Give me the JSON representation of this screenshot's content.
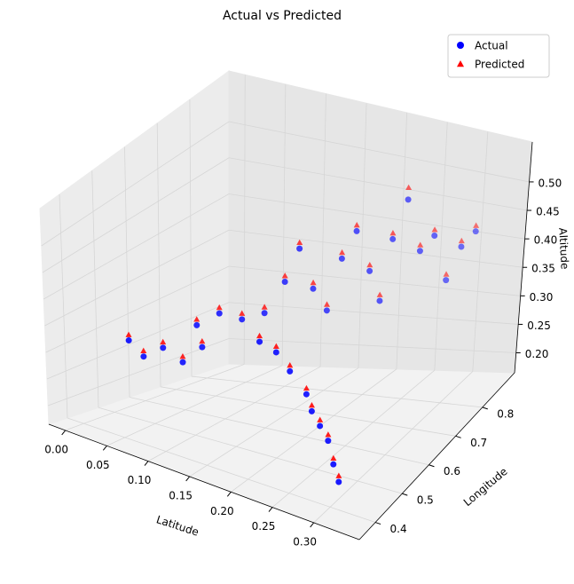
{
  "chart_data": {
    "type": "scatter3d",
    "title": "Actual vs Predicted",
    "xlabel": "Latitude",
    "ylabel": "Longitude",
    "zlabel": "Altitude",
    "xlim": [
      -0.02,
      0.355
    ],
    "ylim": [
      0.34,
      0.92
    ],
    "zlim": [
      0.165,
      0.57
    ],
    "xticks": [
      {
        "value": 0,
        "label": "0.00"
      },
      0.05,
      {
        "value": 0.1,
        "label": "0.10"
      },
      0.15,
      {
        "value": 0.2,
        "label": "0.20"
      },
      0.25,
      {
        "value": 0.3,
        "label": "0.30"
      }
    ],
    "yticks": [
      0.4,
      0.5,
      0.6,
      0.7,
      0.8
    ],
    "zticks": [
      {
        "value": 0.2,
        "label": "0.20"
      },
      0.25,
      {
        "value": 0.3,
        "label": "0.30"
      },
      0.35,
      {
        "value": 0.4,
        "label": "0.40"
      },
      0.45,
      {
        "value": 0.5,
        "label": "0.50"
      }
    ],
    "legend": "upper right",
    "grid": true,
    "series": [
      {
        "name": "Actual",
        "color": "#0000ff",
        "marker": "circle",
        "x": [
          0.31,
          0.3,
          0.29,
          0.28,
          0.27,
          0.26,
          0.24,
          0.22,
          0.2,
          0.05,
          0.06,
          0.08,
          0.1,
          0.12,
          0.11,
          0.13,
          0.15,
          0.17,
          0.18,
          0.19,
          0.2,
          0.21,
          0.22,
          0.23,
          0.24,
          0.25,
          0.26,
          0.27,
          0.28,
          0.29,
          0.3,
          0.31,
          0.32
        ],
        "y": [
          0.4,
          0.41,
          0.42,
          0.42,
          0.42,
          0.43,
          0.43,
          0.44,
          0.44,
          0.42,
          0.44,
          0.45,
          0.46,
          0.47,
          0.48,
          0.5,
          0.52,
          0.54,
          0.58,
          0.6,
          0.62,
          0.64,
          0.66,
          0.68,
          0.7,
          0.71,
          0.72,
          0.74,
          0.76,
          0.78,
          0.8,
          0.82,
          0.84
        ],
        "z": [
          0.21,
          0.23,
          0.26,
          0.28,
          0.3,
          0.32,
          0.35,
          0.37,
          0.38,
          0.33,
          0.3,
          0.32,
          0.3,
          0.33,
          0.36,
          0.38,
          0.37,
          0.38,
          0.42,
          0.47,
          0.4,
          0.36,
          0.44,
          0.48,
          0.41,
          0.36,
          0.46,
          0.52,
          0.43,
          0.45,
          0.37,
          0.42,
          0.44
        ]
      },
      {
        "name": "Predicted",
        "color": "#ff0000",
        "marker": "triangle",
        "x": [
          0.31,
          0.3,
          0.29,
          0.28,
          0.27,
          0.26,
          0.24,
          0.22,
          0.2,
          0.05,
          0.06,
          0.08,
          0.1,
          0.12,
          0.11,
          0.13,
          0.15,
          0.17,
          0.18,
          0.19,
          0.2,
          0.21,
          0.22,
          0.23,
          0.24,
          0.25,
          0.26,
          0.27,
          0.28,
          0.29,
          0.3,
          0.31,
          0.32
        ],
        "y": [
          0.4,
          0.41,
          0.42,
          0.42,
          0.42,
          0.43,
          0.43,
          0.44,
          0.44,
          0.42,
          0.44,
          0.45,
          0.46,
          0.47,
          0.48,
          0.5,
          0.52,
          0.54,
          0.58,
          0.6,
          0.62,
          0.64,
          0.66,
          0.68,
          0.7,
          0.71,
          0.72,
          0.74,
          0.76,
          0.78,
          0.8,
          0.82,
          0.84
        ],
        "z": [
          0.22,
          0.24,
          0.27,
          0.29,
          0.31,
          0.33,
          0.36,
          0.38,
          0.39,
          0.34,
          0.31,
          0.33,
          0.31,
          0.34,
          0.37,
          0.39,
          0.38,
          0.39,
          0.43,
          0.48,
          0.41,
          0.37,
          0.45,
          0.49,
          0.42,
          0.37,
          0.47,
          0.54,
          0.44,
          0.46,
          0.38,
          0.43,
          0.45
        ]
      }
    ]
  }
}
